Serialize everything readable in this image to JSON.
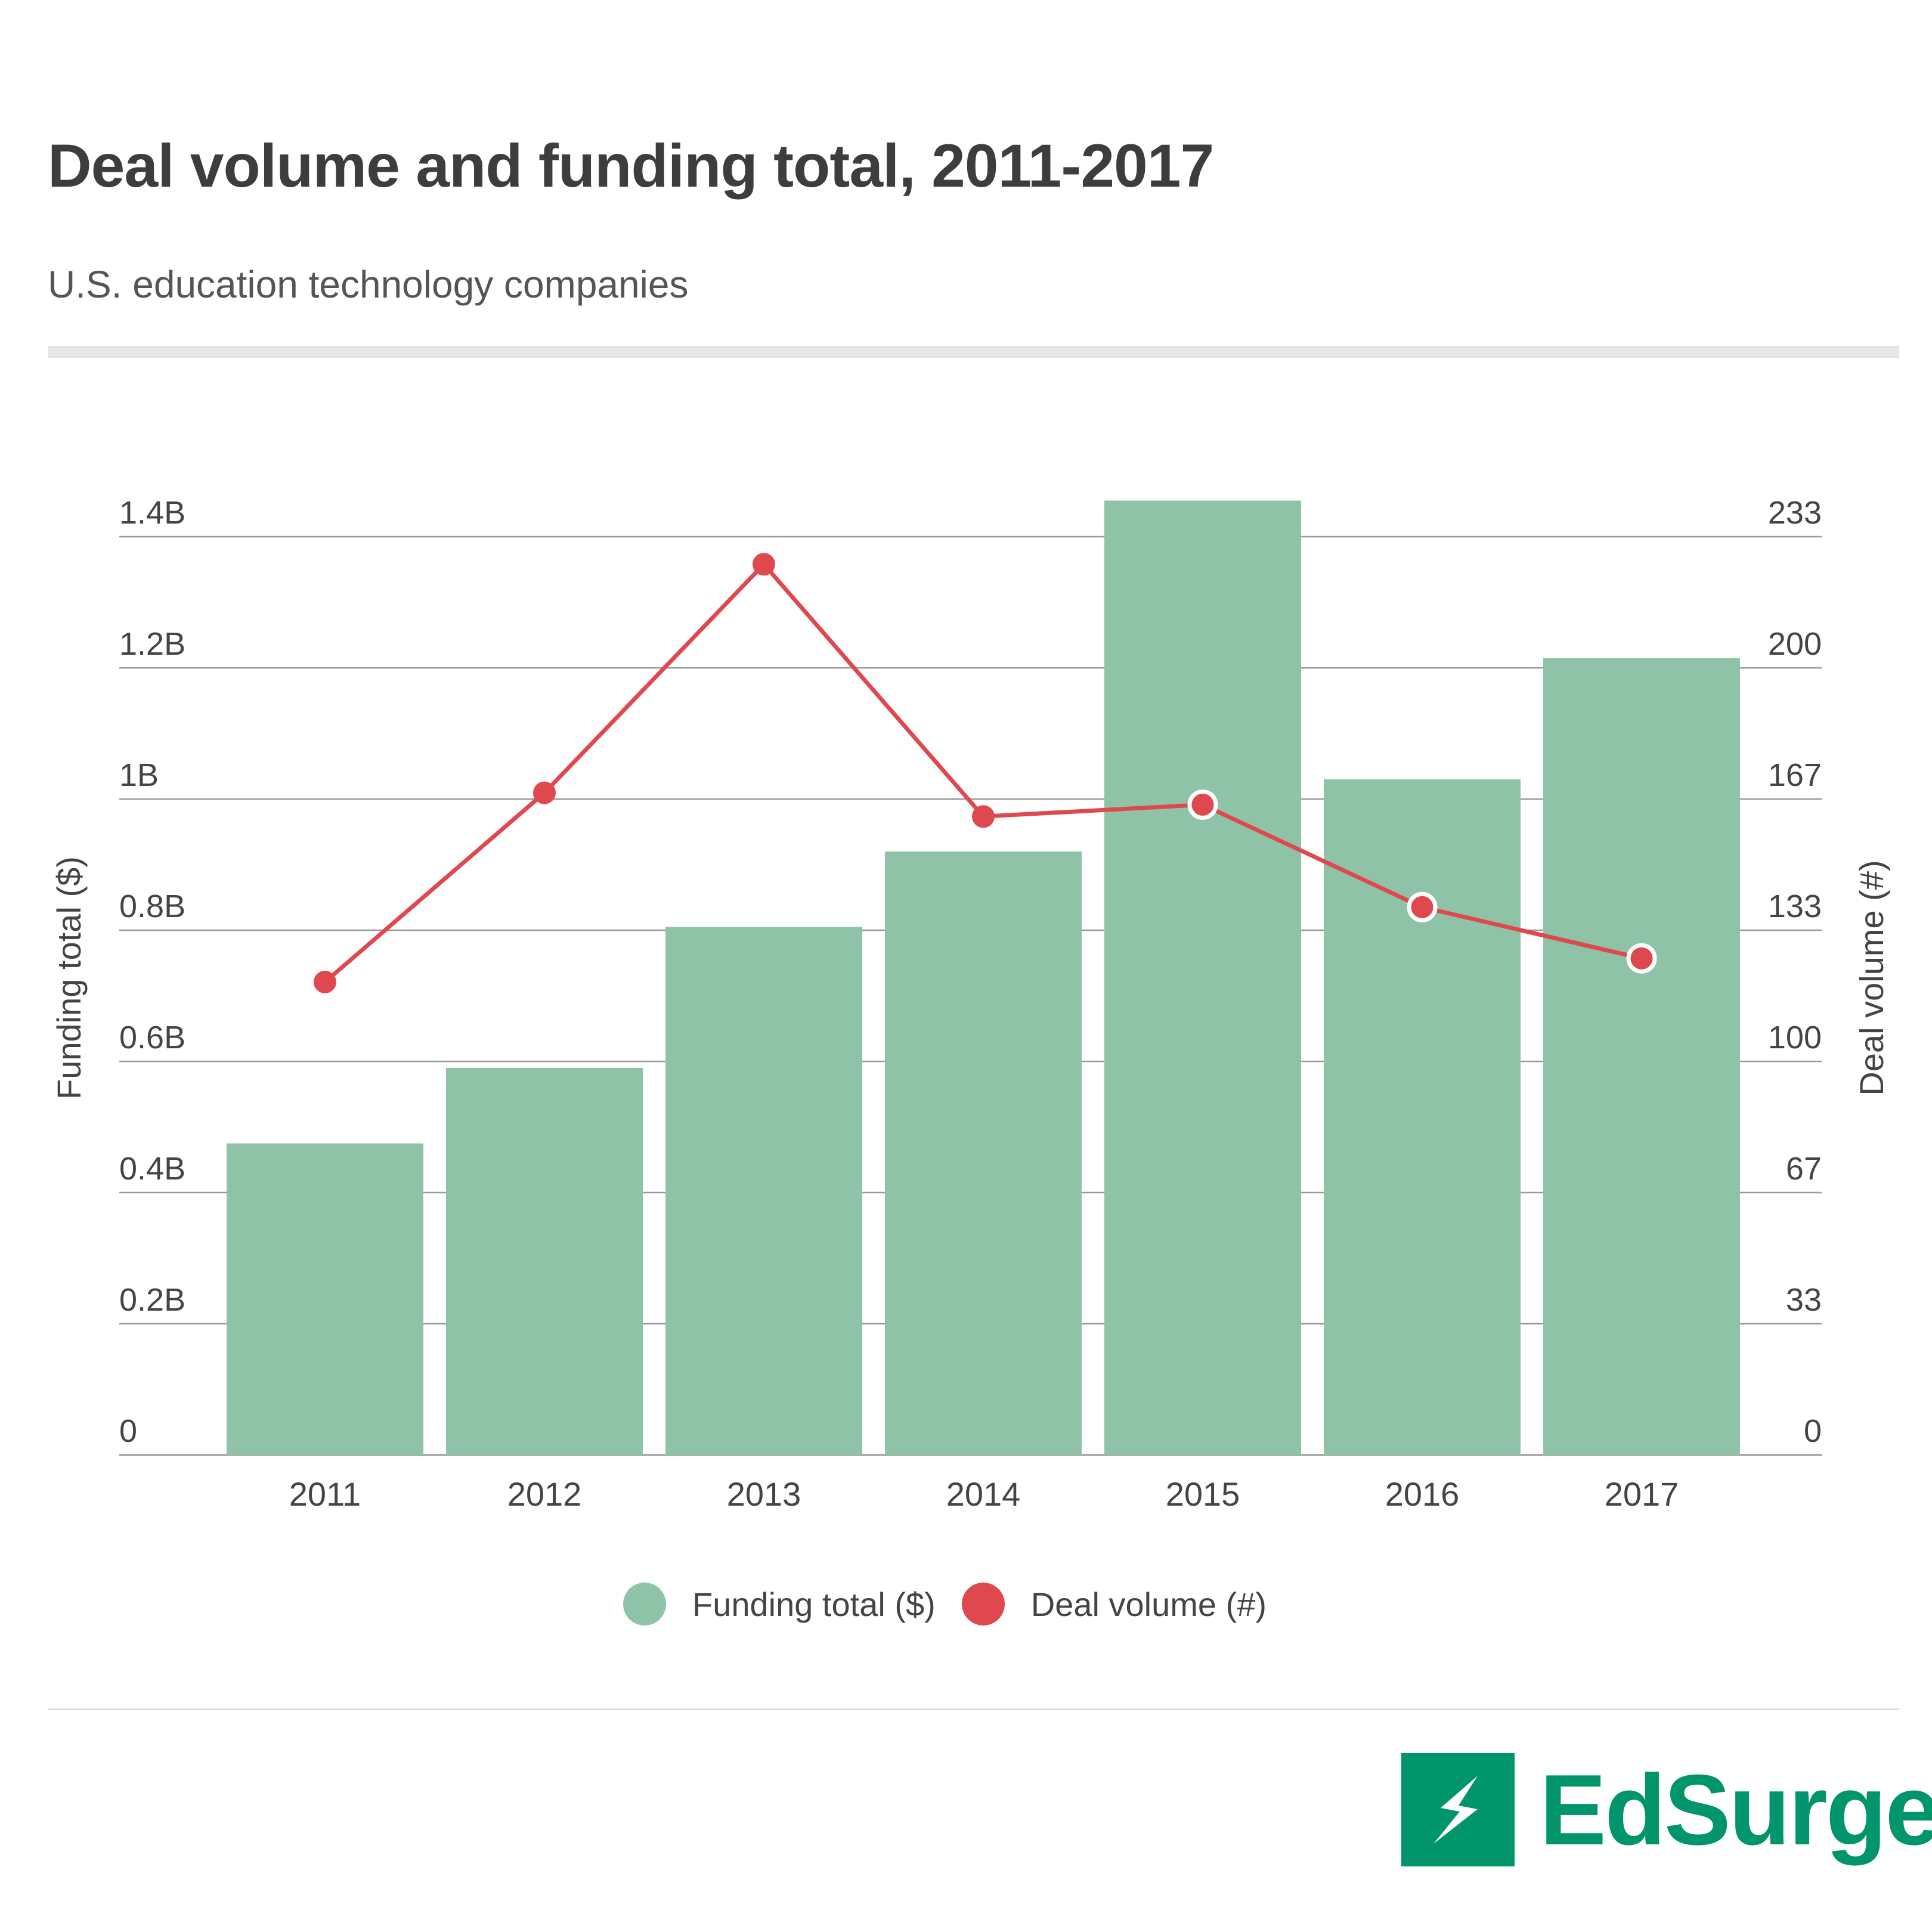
{
  "header": {
    "title": "Deal volume and funding total, 2011-2017",
    "subtitle": "U.S. education technology companies"
  },
  "colors": {
    "bar": "#8fc3a7",
    "line": "#e0484f",
    "grid": "#999999",
    "text": "#444444",
    "brand": "#00956b"
  },
  "chart_data": {
    "type": "bar",
    "categories": [
      "2011",
      "2012",
      "2013",
      "2014",
      "2015",
      "2016",
      "2017"
    ],
    "series": [
      {
        "name": "Funding total ($)",
        "type": "bar",
        "axis": "left",
        "values": [
          0.475,
          0.59,
          0.805,
          0.92,
          1.455,
          1.03,
          1.215
        ]
      },
      {
        "name": "Deal volume (#)",
        "type": "line",
        "axis": "right",
        "values": [
          120,
          168,
          226,
          162,
          165,
          139,
          126
        ]
      }
    ],
    "ylabel": "Funding total ($)",
    "y2label": "Deal volume (#)",
    "ylim": [
      0,
      1.4
    ],
    "y2lim": [
      0,
      233
    ],
    "yticks": [
      0,
      0.2,
      0.4,
      0.6,
      0.8,
      1.0,
      1.2,
      1.4
    ],
    "ytick_labels": [
      "0",
      "0.2B",
      "0.4B",
      "0.6B",
      "0.8B",
      "1B",
      "1.2B",
      "1.4B"
    ],
    "y2tick_labels": [
      "0",
      "33",
      "67",
      "100",
      "133",
      "167",
      "200",
      "233"
    ],
    "grid": true,
    "legend": "bottom-center"
  },
  "legend": {
    "items": [
      {
        "label": "Funding total ($)",
        "color": "#8fc3a7"
      },
      {
        "label": "Deal volume (#)",
        "color": "#e0484f"
      }
    ]
  },
  "brand": {
    "name": "EdSurge"
  }
}
